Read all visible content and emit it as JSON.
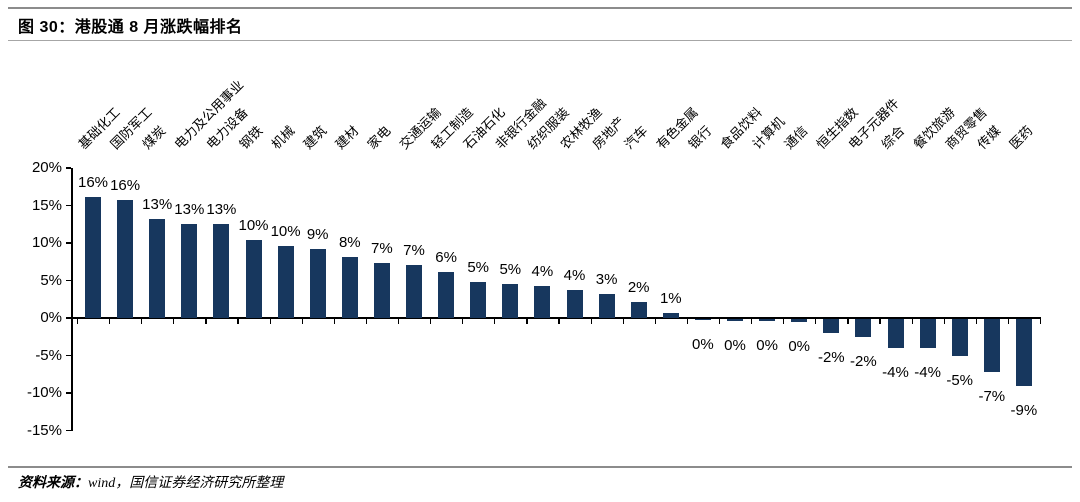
{
  "figure": {
    "title": "图 30：港股通 8 月涨跌幅排名",
    "source_label": "资料来源：",
    "source_text": "wind，国信证券经济研究所整理"
  },
  "chart_data": {
    "type": "bar",
    "title": "港股通8月涨跌幅排名",
    "categories": [
      "基础化工",
      "国防军工",
      "煤炭",
      "电力及公用事业",
      "电力设备",
      "钢铁",
      "机械",
      "建筑",
      "建材",
      "家电",
      "交通运输",
      "轻工制造",
      "石油石化",
      "非银行金融",
      "纺织服装",
      "农林牧渔",
      "房地产",
      "汽车",
      "有色金属",
      "银行",
      "食品饮料",
      "计算机",
      "通信",
      "恒生指数",
      "电子元器件",
      "综合",
      "餐饮旅游",
      "商贸零售",
      "传媒",
      "医药"
    ],
    "values": [
      16.1,
      15.8,
      13.2,
      12.6,
      12.5,
      10.4,
      9.6,
      9.2,
      8.1,
      7.3,
      7.1,
      6.1,
      4.8,
      4.6,
      4.3,
      3.7,
      3.2,
      2.2,
      0.7,
      -0.1,
      -0.2,
      -0.3,
      -0.4,
      -1.8,
      -2.4,
      -3.9,
      -3.8,
      -4.9,
      -7.0,
      -8.9
    ],
    "value_labels": [
      "16%",
      "16%",
      "13%",
      "13%",
      "13%",
      "10%",
      "10%",
      "9%",
      "8%",
      "7%",
      "7%",
      "6%",
      "5%",
      "5%",
      "4%",
      "4%",
      "3%",
      "2%",
      "1%",
      "0%",
      "0%",
      "0%",
      "0%",
      "-2%",
      "-2%",
      "-4%",
      "-4%",
      "-5%",
      "-7%",
      "-9%"
    ],
    "xlabel": "",
    "ylabel": "",
    "ylim": [
      -15,
      20
    ],
    "ytick_labels": [
      "20%",
      "15%",
      "10%",
      "5%",
      "0%",
      "-5%",
      "-10%",
      "-15%"
    ],
    "bar_color": "#17375E",
    "grid": false,
    "legend": false
  }
}
